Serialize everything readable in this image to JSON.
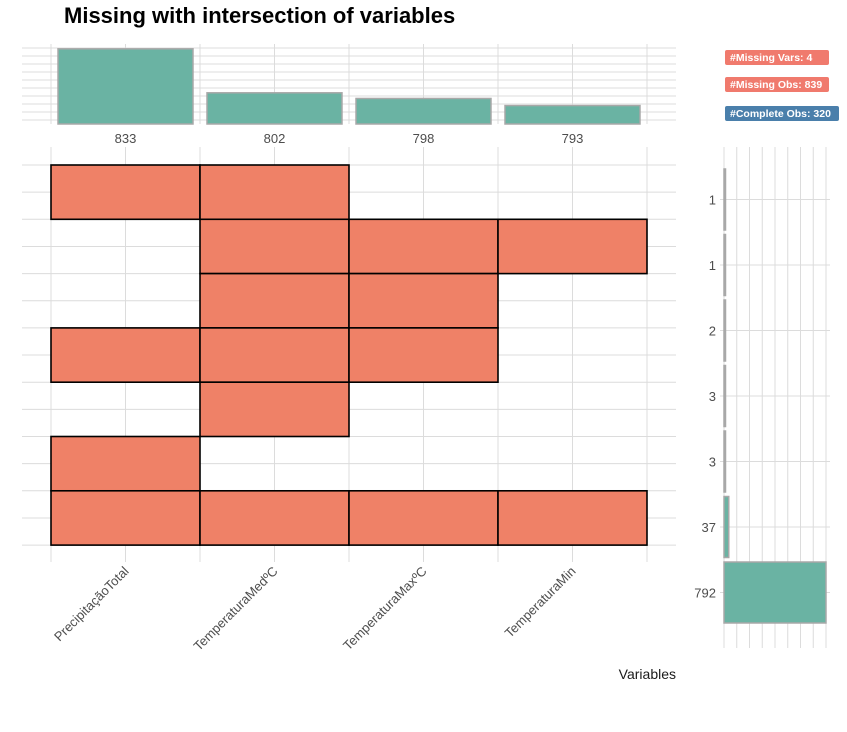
{
  "chart_data": {
    "type": "upset",
    "title": "Missing with intersection of variables",
    "xlabel": "Variables",
    "variables": [
      "PrecipitaçãoTotal",
      "TemperaturaMedºC",
      "TemperaturaMaxºC",
      "TemperaturaMin"
    ],
    "variable_missing_counts": [
      833,
      802,
      798,
      793
    ],
    "intersections": [
      {
        "vars": [
          0,
          1
        ],
        "count": 1
      },
      {
        "vars": [
          1,
          2,
          3
        ],
        "count": 1
      },
      {
        "vars": [
          1,
          2
        ],
        "count": 2
      },
      {
        "vars": [
          0,
          1,
          2
        ],
        "count": 3
      },
      {
        "vars": [
          1
        ],
        "count": 3
      },
      {
        "vars": [
          0
        ],
        "count": 37
      },
      {
        "vars": [
          0,
          1,
          2,
          3
        ],
        "count": 792
      }
    ],
    "badges": [
      {
        "label": "#Missing Vars: 4",
        "color": "#f07a6d"
      },
      {
        "label": "#Missing Obs: 839",
        "color": "#f07a6d"
      },
      {
        "label": "#Complete Obs: 320",
        "color": "#4a7fab"
      }
    ],
    "colors": {
      "tile": "#ef8167",
      "bar": "#6ab3a3",
      "bar_outline": "#a8a8a8"
    }
  }
}
